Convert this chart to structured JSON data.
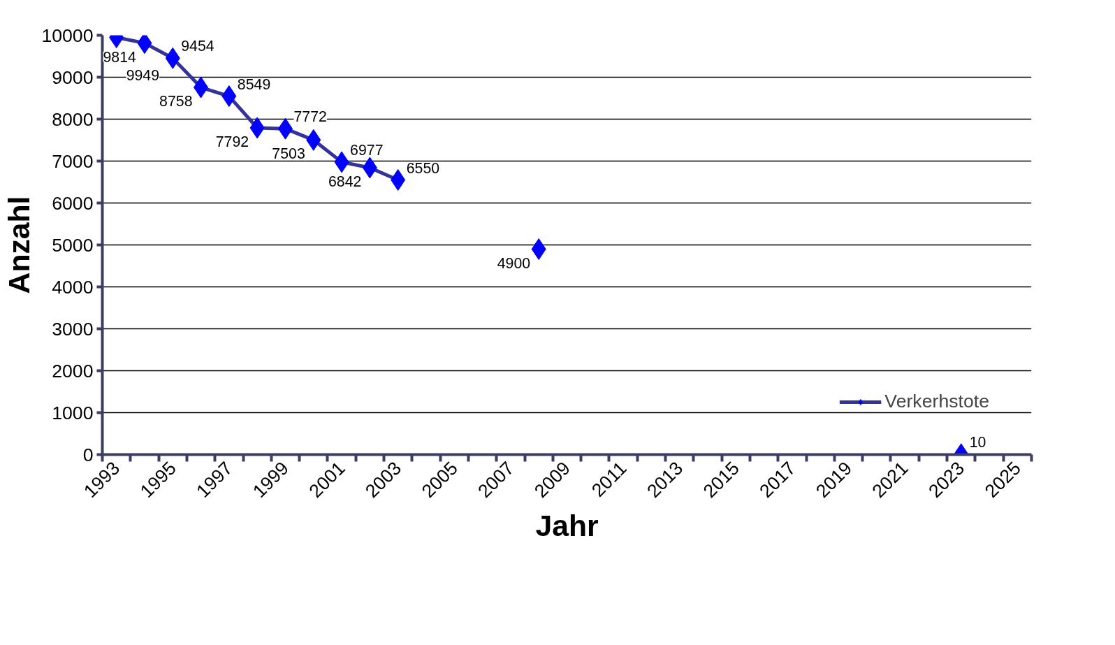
{
  "chart_data": {
    "type": "line",
    "xlabel": "Jahr",
    "ylabel": "Anzahl",
    "categories": [
      "1993",
      null,
      "1995",
      null,
      "1997",
      null,
      "1999",
      null,
      "2001",
      null,
      "2003",
      null,
      "2005",
      null,
      "2007",
      null,
      "2009",
      null,
      "2011",
      null,
      "2013",
      null,
      "2015",
      null,
      "2017",
      null,
      "2019",
      null,
      "2021",
      null,
      "2023",
      null,
      "2025"
    ],
    "series": [
      {
        "name": "Verkerhstote",
        "color": "#333399",
        "colors": [
          "#0000ff",
          "#0000ff",
          "#0000ff",
          "#0000ff",
          "#0000ff",
          "#0000ff",
          "#0000ff",
          "#0000ff",
          "#0000ff",
          "#0000ff",
          "#0000ff",
          null,
          null,
          null,
          null,
          "#0000ff",
          null,
          null,
          null,
          null,
          null,
          null,
          null,
          null,
          null,
          null,
          null,
          null,
          null,
          null,
          "#0000ff",
          null,
          null
        ],
        "values": [
          9949,
          9814,
          9454,
          8758,
          8549,
          7792,
          7772,
          7503,
          6977,
          6842,
          6550,
          null,
          null,
          null,
          null,
          4900,
          null,
          null,
          null,
          null,
          null,
          null,
          null,
          null,
          null,
          null,
          null,
          null,
          null,
          null,
          10,
          null,
          null
        ]
      }
    ],
    "ylim": [
      0,
      10000
    ],
    "yticks": [
      0,
      1000,
      2000,
      3000,
      4000,
      5000,
      6000,
      7000,
      8000,
      9000,
      10000
    ],
    "grid": "y",
    "legend": "bottom right",
    "marker": "diamond",
    "line_style": "solid",
    "data_labels": true
  }
}
